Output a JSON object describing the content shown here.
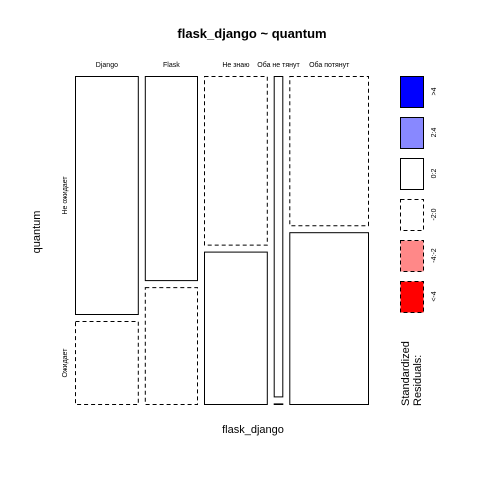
{
  "chart_data": {
    "type": "mosaic",
    "title": "flask_django ~ quantum",
    "xlabel": "flask_django",
    "ylabel": "quantum",
    "x_categories": [
      "Django",
      "Flask",
      "Не знаю",
      "Оба не тянут",
      "Оба потянут"
    ],
    "y_categories": [
      "Не ожидает",
      "Ожидает"
    ],
    "x_proportions": [
      0.2,
      0.167,
      0.2,
      0.03,
      0.25
    ],
    "cells": [
      {
        "x": "Django",
        "y": "Не ожидает",
        "proportion": 0.74,
        "residual_class": "0:2"
      },
      {
        "x": "Django",
        "y": "Ожидает",
        "proportion": 0.26,
        "residual_class": "-2:0"
      },
      {
        "x": "Flask",
        "y": "Не ожидает",
        "proportion": 0.635,
        "residual_class": "0:2"
      },
      {
        "x": "Flask",
        "y": "Ожидает",
        "proportion": 0.365,
        "residual_class": "-2:0"
      },
      {
        "x": "Не знаю",
        "y": "Не ожидает",
        "proportion": 0.525,
        "residual_class": "-2:0"
      },
      {
        "x": "Не знаю",
        "y": "Ожидает",
        "proportion": 0.475,
        "residual_class": "0:2"
      },
      {
        "x": "Оба не тянут",
        "y": "Не ожидает",
        "proportion": 0.995,
        "residual_class": "0:2"
      },
      {
        "x": "Оба не тянут",
        "y": "Ожидает",
        "proportion": 0.005,
        "residual_class": "0:2"
      },
      {
        "x": "Оба потянут",
        "y": "Не ожидает",
        "proportion": 0.465,
        "residual_class": "-2:0"
      },
      {
        "x": "Оба потянут",
        "y": "Ожидает",
        "proportion": 0.535,
        "residual_class": "0:2"
      }
    ],
    "legend": {
      "title_line1": "Standardized",
      "title_line2": "Residuals:",
      "placement": "right",
      "entries": [
        {
          "label": ">4",
          "fill": "#0000ff",
          "dashed": false
        },
        {
          "label": "2:4",
          "fill": "#8888ff",
          "dashed": false
        },
        {
          "label": "0:2",
          "fill": "#ffffff",
          "dashed": false
        },
        {
          "label": "-2:0",
          "fill": "#ffffff",
          "dashed": true
        },
        {
          "label": "-4:-2",
          "fill": "#ff8888",
          "dashed": true
        },
        {
          "label": "<-4",
          "fill": "#ff0000",
          "dashed": true
        }
      ]
    }
  }
}
